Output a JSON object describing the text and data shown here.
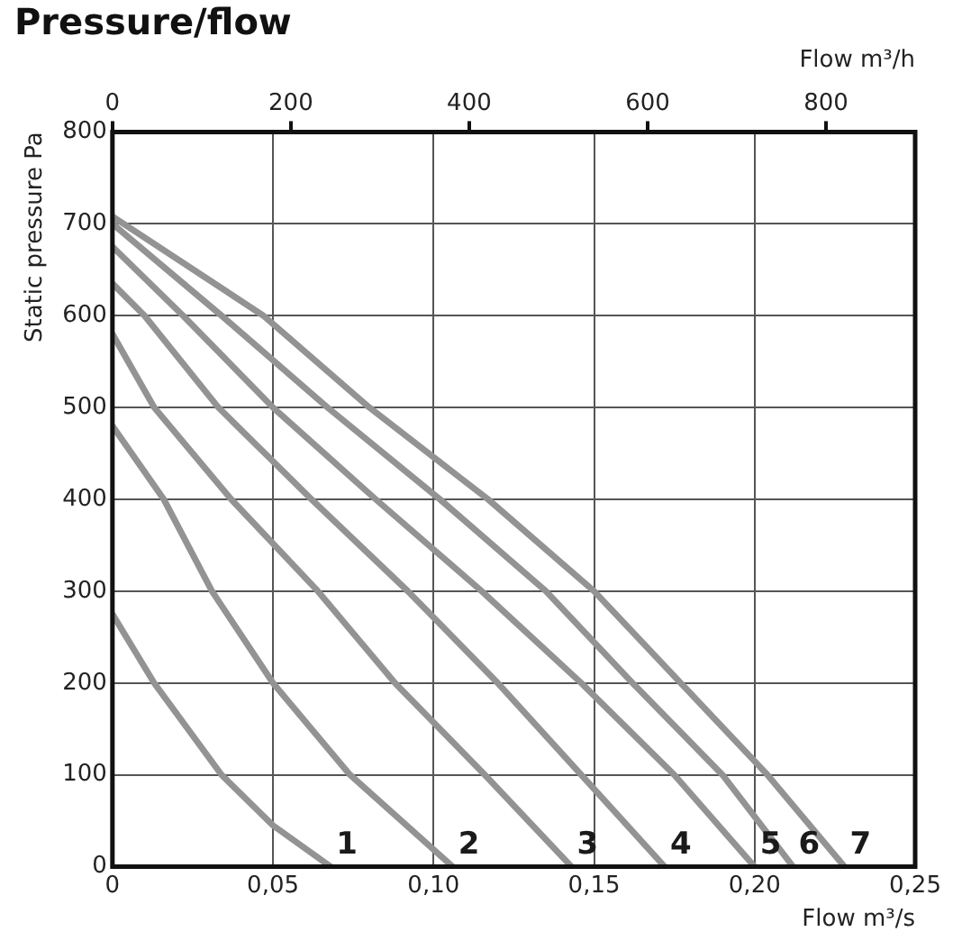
{
  "chart_data": {
    "type": "line",
    "title": "Pressure/flow",
    "xlabel": "Flow m³/s",
    "x2label": "Flow m³/h",
    "ylabel": "Static pressure Pa",
    "xlim": [
      0,
      0.25
    ],
    "xticks": [
      0,
      {
        "value": 0.05,
        "label": "0,05"
      },
      {
        "value": 0.1,
        "label": "0,10"
      },
      {
        "value": 0.15,
        "label": "0,15"
      },
      {
        "value": 0.2,
        "label": "0,20"
      },
      {
        "value": 0.25,
        "label": "0,25"
      }
    ],
    "x2lim": [
      0,
      900
    ],
    "x2ticks": [
      0,
      200,
      400,
      600,
      800
    ],
    "ylim": [
      0,
      800
    ],
    "yticks": [
      0,
      100,
      200,
      300,
      400,
      500,
      600,
      700,
      800
    ],
    "grid": true,
    "legend": false,
    "marker": "none",
    "line_style": "solid",
    "series": [
      {
        "name": "1",
        "color": "#939393",
        "x": [
          0,
          0.013,
          0.034,
          0.05,
          0.068
        ],
        "values": [
          275,
          200,
          100,
          45,
          0
        ]
      },
      {
        "name": "2",
        "color": "#939393",
        "x": [
          0,
          0.016,
          0.031,
          0.05,
          0.074,
          0.106
        ],
        "values": [
          480,
          400,
          300,
          200,
          100,
          0
        ]
      },
      {
        "name": "3",
        "color": "#939393",
        "x": [
          0,
          0.013,
          0.037,
          0.064,
          0.088,
          0.116,
          0.143
        ],
        "values": [
          580,
          500,
          400,
          300,
          200,
          100,
          0
        ]
      },
      {
        "name": "4",
        "color": "#939393",
        "x": [
          0,
          0.01,
          0.033,
          0.062,
          0.092,
          0.12,
          0.146,
          0.172
        ],
        "values": [
          635,
          600,
          500,
          400,
          300,
          200,
          100,
          0
        ]
      },
      {
        "name": "5",
        "color": "#939393",
        "x": [
          0,
          0.022,
          0.05,
          0.082,
          0.115,
          0.146,
          0.175,
          0.2
        ],
        "values": [
          675,
          600,
          500,
          400,
          300,
          200,
          100,
          0
        ]
      },
      {
        "name": "6",
        "color": "#939393",
        "x": [
          0,
          0.034,
          0.067,
          0.102,
          0.135,
          0.162,
          0.19,
          0.212
        ],
        "values": [
          700,
          600,
          500,
          400,
          300,
          200,
          100,
          0
        ]
      },
      {
        "name": "7",
        "color": "#939393",
        "x": [
          0,
          0.047,
          0.08,
          0.117,
          0.15,
          0.177,
          0.204,
          0.228
        ],
        "values": [
          708,
          600,
          500,
          400,
          300,
          200,
          100,
          0
        ]
      }
    ]
  }
}
